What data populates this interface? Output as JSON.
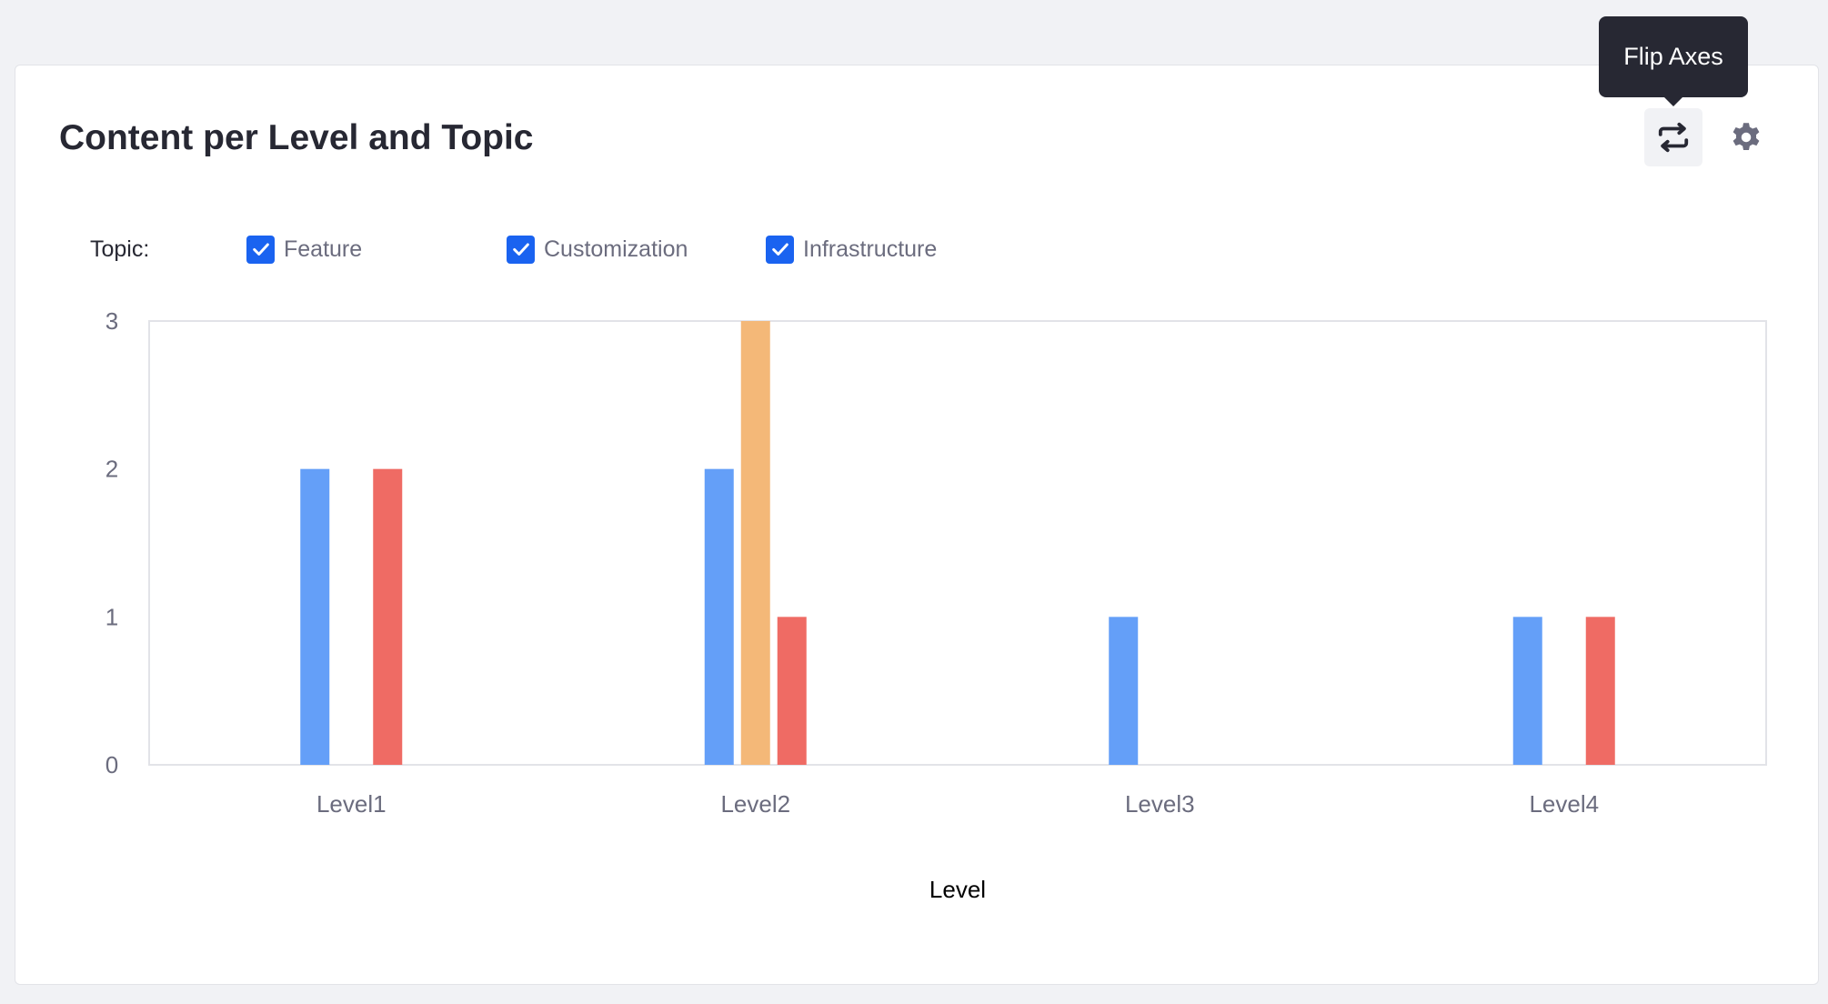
{
  "panel": {
    "title": "Content per Level and Topic",
    "flip_icon": "swap-arrows-icon",
    "settings_icon": "gear-icon",
    "tooltip": "Flip Axes"
  },
  "filters": {
    "label": "Topic:",
    "options": [
      {
        "label": "Feature",
        "checked": true
      },
      {
        "label": "Customization",
        "checked": true
      },
      {
        "label": "Infrastructure",
        "checked": true
      }
    ]
  },
  "chart_data": {
    "type": "bar",
    "categories": [
      "Level1",
      "Level2",
      "Level3",
      "Level4"
    ],
    "series": [
      {
        "name": "Feature",
        "color": "#649ff8",
        "values": [
          2,
          2,
          1,
          1
        ]
      },
      {
        "name": "Customization",
        "color": "#f4b878",
        "values": [
          0,
          3,
          0,
          0
        ]
      },
      {
        "name": "Infrastructure",
        "color": "#ef6b64",
        "values": [
          2,
          1,
          0,
          1
        ]
      }
    ],
    "xlabel": "Level",
    "ylabel": "",
    "ylim": [
      0,
      3
    ],
    "yticks": [
      "0",
      "1",
      "2",
      "3"
    ],
    "grid": false,
    "legend": "top-left"
  }
}
